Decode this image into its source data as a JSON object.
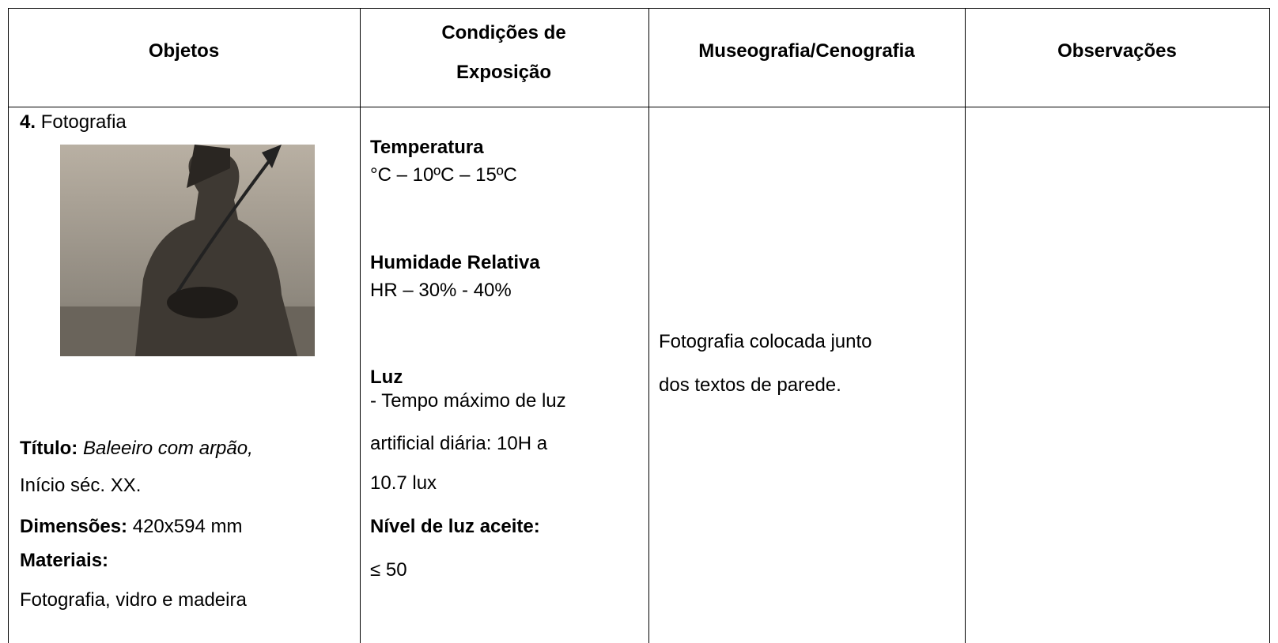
{
  "table": {
    "headers": [
      "Objetos",
      "Condições de Exposição",
      "Museografia/Cenografia",
      "Observações"
    ],
    "rows": [
      {
        "object": {
          "number": "4.",
          "kind": "Fotografia",
          "title_label": "Título:",
          "title": "Baleeiro com arpão,",
          "date": "Início séc. XX.",
          "dimensions_label": "Dimensões:",
          "dimensions": "420x594 mm",
          "materials_label": "Materiais:",
          "materials": "Fotografia, vidro e madeira"
        },
        "conditions": {
          "temperature_label": "Temperatura",
          "temperature": "°C – 10ºC – 15ºC",
          "humidity_label": "Humidade Relativa",
          "humidity": "HR – 30% - 40%",
          "light_label": "Luz",
          "light_lines": [
            "- Tempo máximo de luz",
            "artificial diária: 10H a",
            "10.7 lux"
          ],
          "light_level_label": "Nível de luz aceite:",
          "light_level": "≤ 50"
        },
        "museography_lines": [
          "Fotografia colocada junto",
          "dos textos de parede."
        ],
        "observations": null
      }
    ]
  }
}
